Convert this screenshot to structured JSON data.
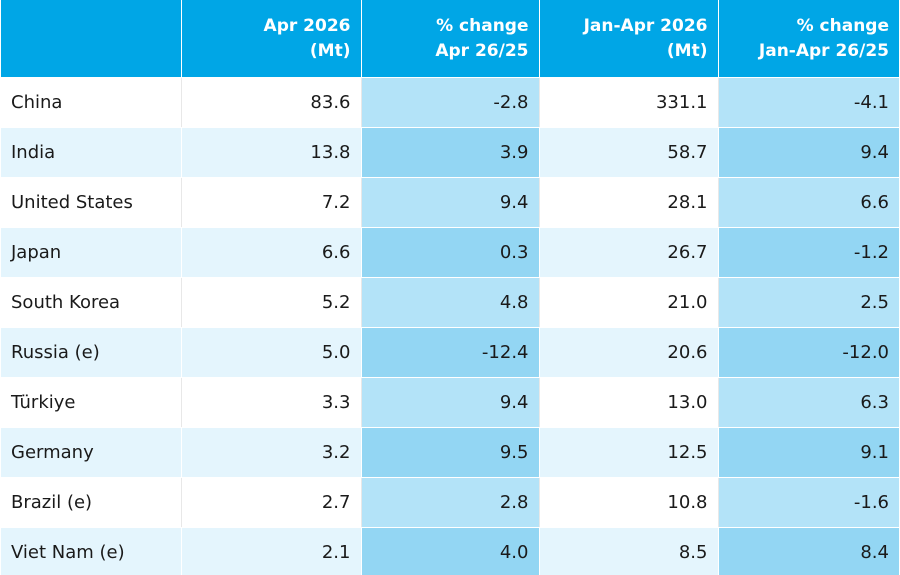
{
  "header": {
    "col1_line1": "Apr 2026",
    "col1_line2": "(Mt)",
    "col2_line1": "% change",
    "col2_line2": "Apr 26/25",
    "col3_line1": "Jan-Apr 2026",
    "col3_line2": "(Mt)",
    "col4_line1": "% change",
    "col4_line2": "Jan-Apr 26/25"
  },
  "rows": [
    {
      "country": "China",
      "apr": "83.6",
      "apr_change": "-2.8",
      "ytd": "331.1",
      "ytd_change": "-4.1"
    },
    {
      "country": "India",
      "apr": "13.8",
      "apr_change": "3.9",
      "ytd": "58.7",
      "ytd_change": "9.4"
    },
    {
      "country": "United States",
      "apr": "7.2",
      "apr_change": "9.4",
      "ytd": "28.1",
      "ytd_change": "6.6"
    },
    {
      "country": "Japan",
      "apr": "6.6",
      "apr_change": "0.3",
      "ytd": "26.7",
      "ytd_change": "-1.2"
    },
    {
      "country": "South Korea",
      "apr": "5.2",
      "apr_change": "4.8",
      "ytd": "21.0",
      "ytd_change": "2.5"
    },
    {
      "country": "Russia (e)",
      "apr": "5.0",
      "apr_change": "-12.4",
      "ytd": "20.6",
      "ytd_change": "-12.0"
    },
    {
      "country": "Türkiye",
      "apr": "3.3",
      "apr_change": "9.4",
      "ytd": "13.0",
      "ytd_change": "6.3"
    },
    {
      "country": "Germany",
      "apr": "3.2",
      "apr_change": "9.5",
      "ytd": "12.5",
      "ytd_change": "9.1"
    },
    {
      "country": "Brazil (e)",
      "apr": "2.7",
      "apr_change": "2.8",
      "ytd": "10.8",
      "ytd_change": "-1.6"
    },
    {
      "country": "Viet Nam (e)",
      "apr": "2.1",
      "apr_change": "4.0",
      "ytd": "8.5",
      "ytd_change": "8.4"
    }
  ],
  "colors": {
    "header_bg": "#00a6e6",
    "header_text": "#ffffff",
    "row_white": "#ffffff",
    "row_light": "#e4f5fd",
    "col_shade_odd": "#b3e3f8",
    "col_shade_even": "#93d6f3"
  }
}
